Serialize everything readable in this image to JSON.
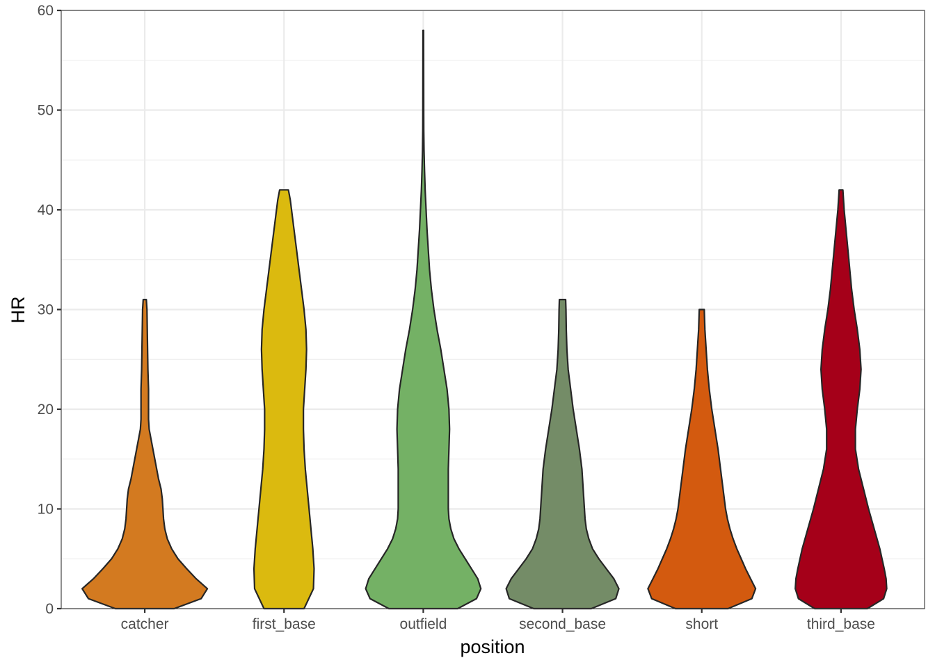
{
  "chart_data": {
    "type": "violin",
    "xlabel": "position",
    "ylabel": "HR",
    "categories": [
      "catcher",
      "first_base",
      "outfield",
      "second_base",
      "short",
      "third_base"
    ],
    "colors": [
      "#D37A20",
      "#DBBA0F",
      "#74B165",
      "#748C67",
      "#D35A0F",
      "#A50019"
    ],
    "ylim": [
      0,
      60
    ],
    "y_ticks": [
      "0",
      "10",
      "20",
      "30",
      "40",
      "50",
      "60"
    ],
    "grid": true,
    "legend": "none",
    "violins": [
      {
        "name": "catcher",
        "min": 0,
        "max": 31,
        "profile": [
          [
            0,
            0.47
          ],
          [
            1,
            0.9
          ],
          [
            2,
            1.0
          ],
          [
            3,
            0.82
          ],
          [
            4,
            0.67
          ],
          [
            5,
            0.53
          ],
          [
            6,
            0.43
          ],
          [
            7,
            0.36
          ],
          [
            8,
            0.32
          ],
          [
            9,
            0.3
          ],
          [
            10,
            0.29
          ],
          [
            11,
            0.28
          ],
          [
            12,
            0.26
          ],
          [
            13,
            0.22
          ],
          [
            14,
            0.19
          ],
          [
            15,
            0.16
          ],
          [
            16,
            0.13
          ],
          [
            17,
            0.1
          ],
          [
            18,
            0.07
          ],
          [
            19,
            0.06
          ],
          [
            20,
            0.06
          ],
          [
            22,
            0.06
          ],
          [
            24,
            0.05
          ],
          [
            26,
            0.045
          ],
          [
            28,
            0.04
          ],
          [
            30,
            0.035
          ],
          [
            31,
            0.025
          ]
        ]
      },
      {
        "name": "first_base",
        "min": 0,
        "max": 42,
        "profile": [
          [
            0,
            0.32
          ],
          [
            2,
            0.47
          ],
          [
            4,
            0.48
          ],
          [
            6,
            0.46
          ],
          [
            8,
            0.43
          ],
          [
            10,
            0.4
          ],
          [
            12,
            0.37
          ],
          [
            14,
            0.34
          ],
          [
            16,
            0.32
          ],
          [
            18,
            0.31
          ],
          [
            20,
            0.31
          ],
          [
            22,
            0.33
          ],
          [
            24,
            0.35
          ],
          [
            26,
            0.36
          ],
          [
            28,
            0.35
          ],
          [
            30,
            0.32
          ],
          [
            32,
            0.28
          ],
          [
            34,
            0.24
          ],
          [
            36,
            0.2
          ],
          [
            38,
            0.16
          ],
          [
            40,
            0.12
          ],
          [
            41,
            0.1
          ],
          [
            42,
            0.07
          ]
        ]
      },
      {
        "name": "outfield",
        "min": 0,
        "max": 58,
        "profile": [
          [
            0,
            0.55
          ],
          [
            1,
            0.85
          ],
          [
            2,
            0.92
          ],
          [
            3,
            0.87
          ],
          [
            4,
            0.77
          ],
          [
            5,
            0.67
          ],
          [
            6,
            0.57
          ],
          [
            7,
            0.49
          ],
          [
            8,
            0.44
          ],
          [
            9,
            0.41
          ],
          [
            10,
            0.4
          ],
          [
            12,
            0.4
          ],
          [
            14,
            0.4
          ],
          [
            16,
            0.41
          ],
          [
            18,
            0.42
          ],
          [
            20,
            0.41
          ],
          [
            22,
            0.38
          ],
          [
            24,
            0.33
          ],
          [
            26,
            0.28
          ],
          [
            28,
            0.22
          ],
          [
            30,
            0.17
          ],
          [
            32,
            0.13
          ],
          [
            34,
            0.1
          ],
          [
            36,
            0.08
          ],
          [
            38,
            0.06
          ],
          [
            40,
            0.045
          ],
          [
            42,
            0.03
          ],
          [
            44,
            0.02
          ],
          [
            46,
            0.012
          ],
          [
            48,
            0.008
          ],
          [
            50,
            0.007
          ],
          [
            54,
            0.006
          ],
          [
            58,
            0.005
          ]
        ]
      },
      {
        "name": "second_base",
        "min": 0,
        "max": 31,
        "profile": [
          [
            0,
            0.46
          ],
          [
            1,
            0.85
          ],
          [
            2,
            0.9
          ],
          [
            3,
            0.82
          ],
          [
            4,
            0.7
          ],
          [
            5,
            0.58
          ],
          [
            6,
            0.48
          ],
          [
            7,
            0.42
          ],
          [
            8,
            0.38
          ],
          [
            9,
            0.36
          ],
          [
            10,
            0.35
          ],
          [
            12,
            0.33
          ],
          [
            14,
            0.31
          ],
          [
            16,
            0.27
          ],
          [
            18,
            0.22
          ],
          [
            20,
            0.17
          ],
          [
            22,
            0.13
          ],
          [
            24,
            0.09
          ],
          [
            26,
            0.07
          ],
          [
            28,
            0.06
          ],
          [
            30,
            0.055
          ],
          [
            31,
            0.05
          ]
        ]
      },
      {
        "name": "short",
        "min": 0,
        "max": 30,
        "profile": [
          [
            0,
            0.42
          ],
          [
            1,
            0.8
          ],
          [
            2,
            0.86
          ],
          [
            3,
            0.78
          ],
          [
            4,
            0.7
          ],
          [
            5,
            0.63
          ],
          [
            6,
            0.56
          ],
          [
            7,
            0.5
          ],
          [
            8,
            0.45
          ],
          [
            9,
            0.41
          ],
          [
            10,
            0.38
          ],
          [
            12,
            0.34
          ],
          [
            14,
            0.3
          ],
          [
            16,
            0.26
          ],
          [
            18,
            0.21
          ],
          [
            20,
            0.16
          ],
          [
            22,
            0.12
          ],
          [
            24,
            0.09
          ],
          [
            26,
            0.07
          ],
          [
            28,
            0.05
          ],
          [
            30,
            0.04
          ]
        ]
      },
      {
        "name": "third_base",
        "min": 0,
        "max": 42,
        "profile": [
          [
            0,
            0.42
          ],
          [
            1,
            0.68
          ],
          [
            2,
            0.73
          ],
          [
            3,
            0.72
          ],
          [
            4,
            0.69
          ],
          [
            6,
            0.62
          ],
          [
            8,
            0.53
          ],
          [
            10,
            0.44
          ],
          [
            12,
            0.36
          ],
          [
            14,
            0.28
          ],
          [
            16,
            0.23
          ],
          [
            18,
            0.23
          ],
          [
            20,
            0.26
          ],
          [
            22,
            0.3
          ],
          [
            24,
            0.32
          ],
          [
            26,
            0.3
          ],
          [
            28,
            0.26
          ],
          [
            30,
            0.21
          ],
          [
            32,
            0.17
          ],
          [
            34,
            0.14
          ],
          [
            36,
            0.11
          ],
          [
            38,
            0.08
          ],
          [
            40,
            0.05
          ],
          [
            42,
            0.03
          ]
        ]
      }
    ]
  }
}
